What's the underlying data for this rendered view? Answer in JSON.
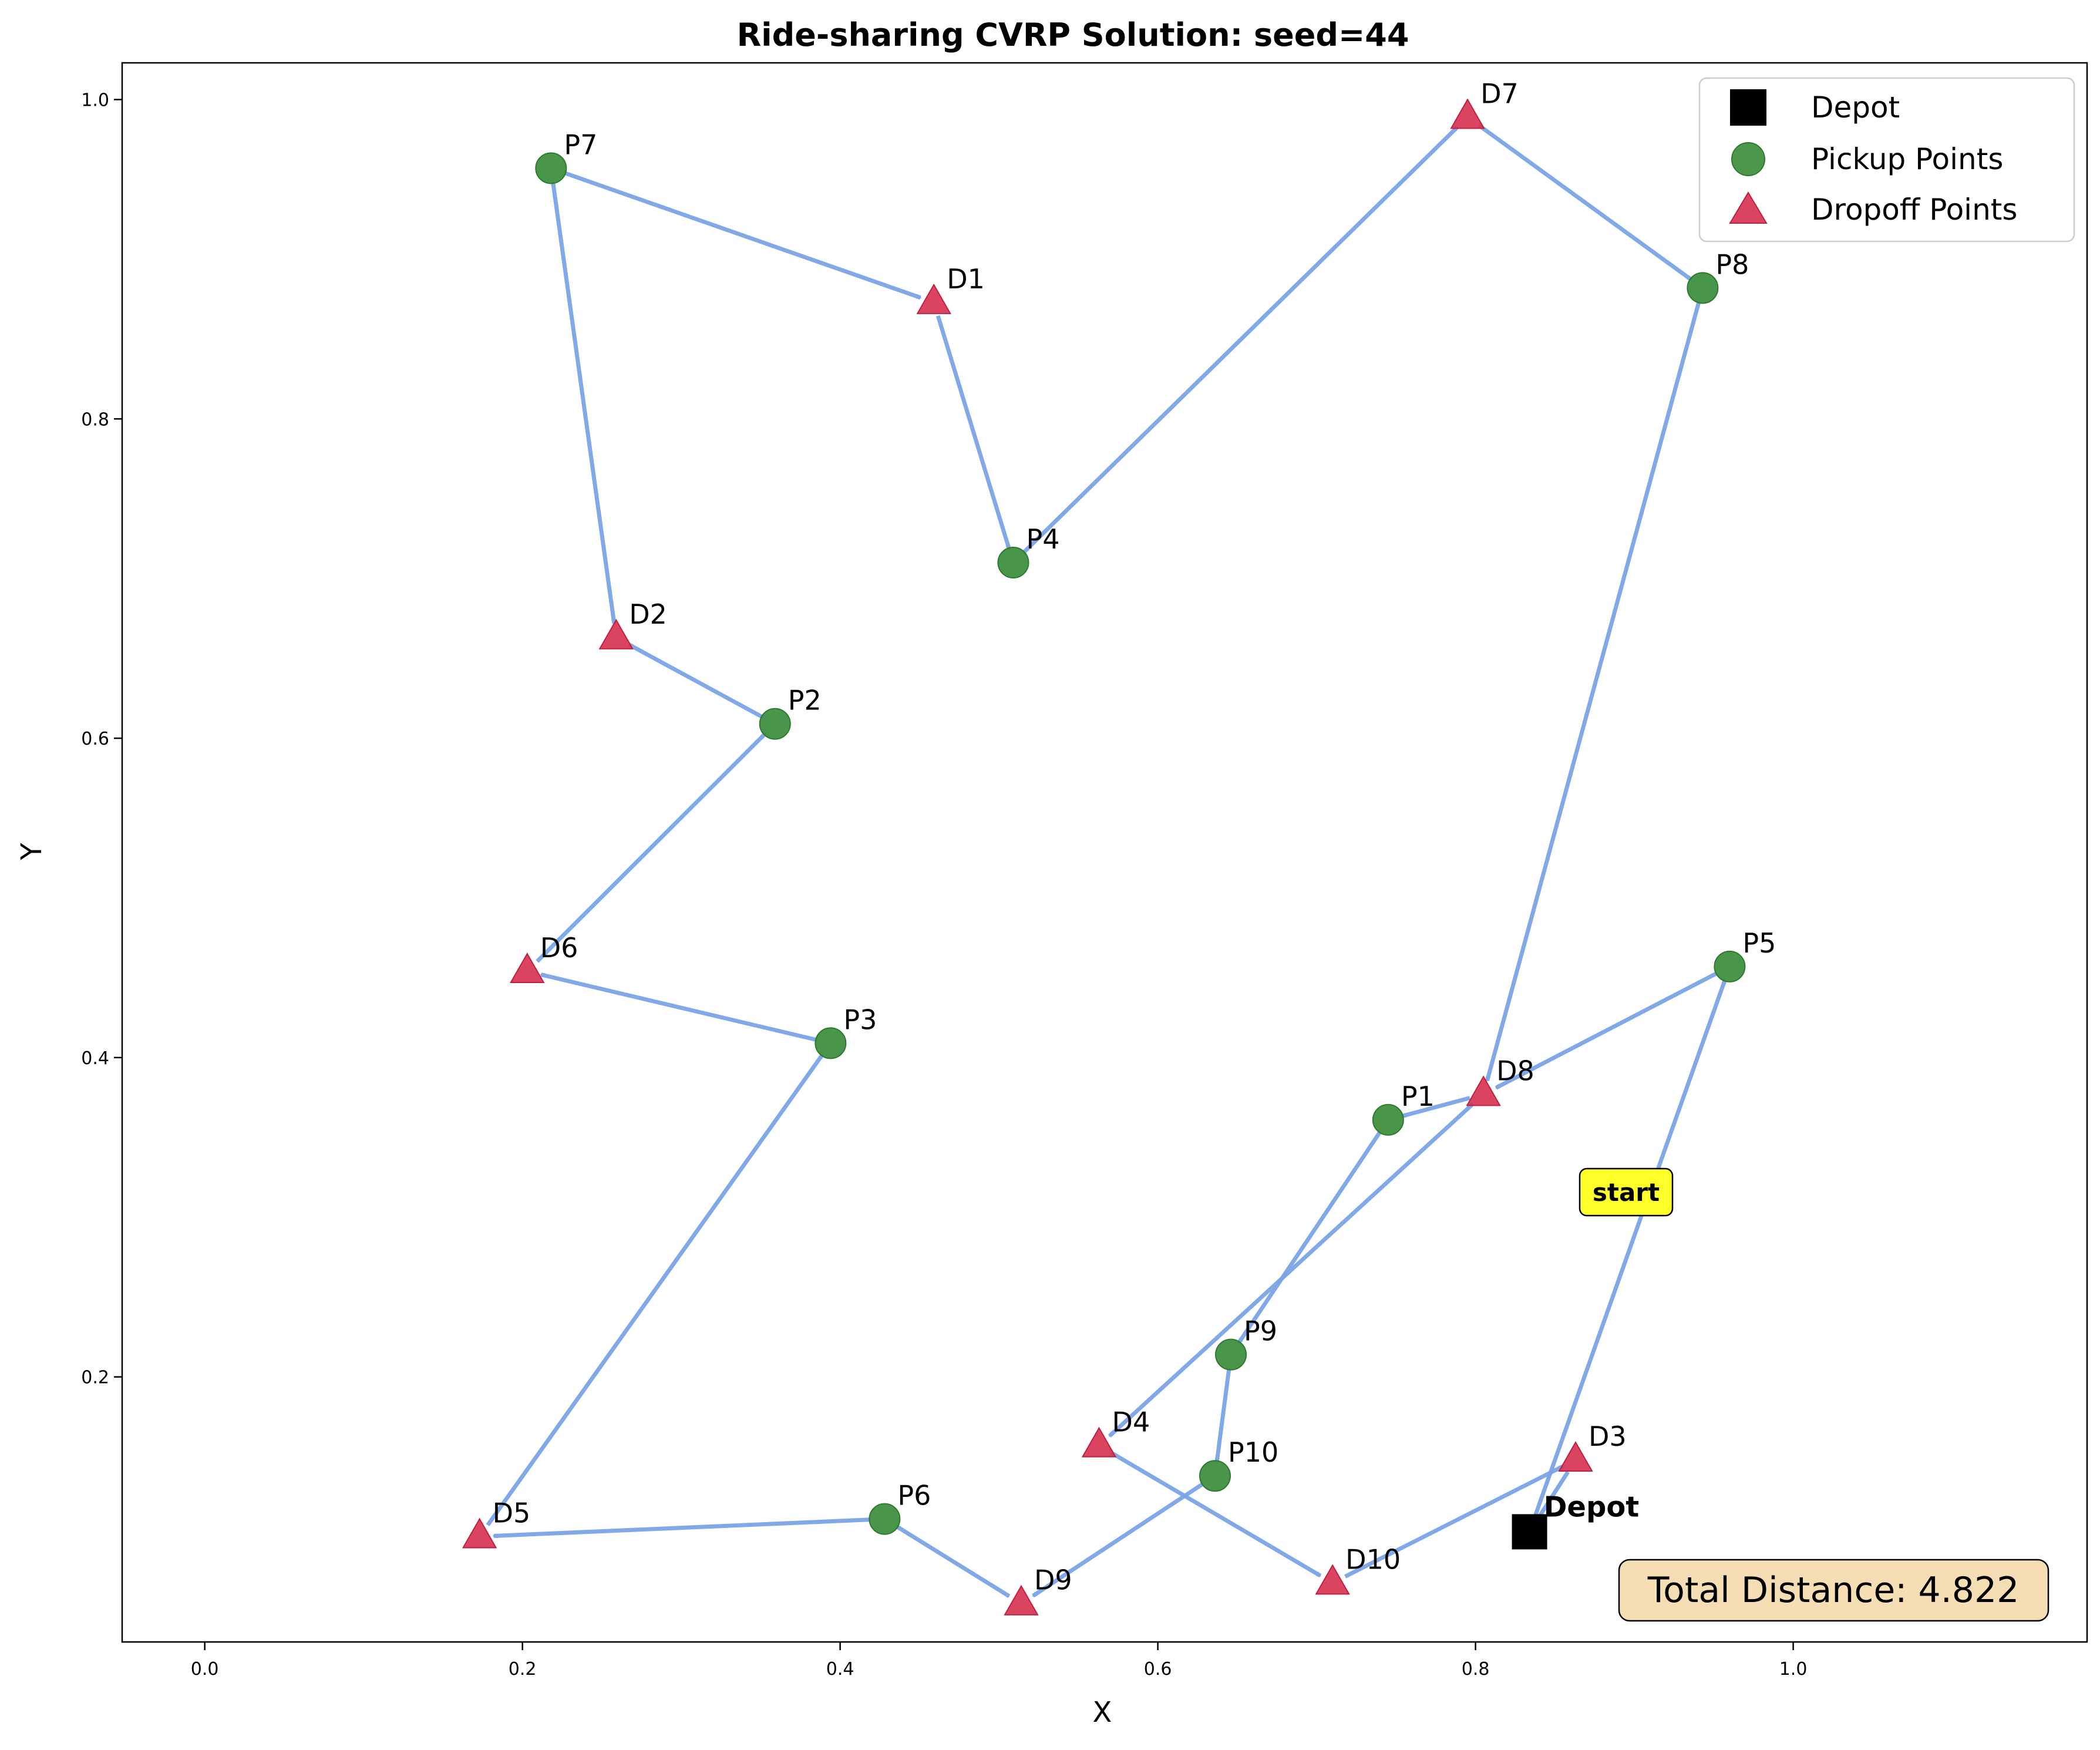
{
  "chart_data": {
    "type": "scatter",
    "title": "Ride-sharing CVRP Solution: seed=44",
    "xlabel": "X",
    "ylabel": "Y",
    "xlim": [
      -0.052,
      1.185
    ],
    "ylim": [
      0.034,
      1.023
    ],
    "xticks": [
      {
        "value": 0.0,
        "label": "0.0"
      },
      {
        "value": 0.2,
        "label": "0.2"
      },
      {
        "value": 0.4,
        "label": "0.4"
      },
      {
        "value": 0.6,
        "label": "0.6"
      },
      {
        "value": 0.8,
        "label": "0.8"
      },
      {
        "value": 1.0,
        "label": "1.0"
      }
    ],
    "yticks": [
      {
        "value": 0.2,
        "label": "0.2"
      },
      {
        "value": 0.4,
        "label": "0.4"
      },
      {
        "value": 0.6,
        "label": "0.6"
      },
      {
        "value": 0.8,
        "label": "0.8"
      },
      {
        "value": 1.0,
        "label": "1.0"
      }
    ],
    "grid": false,
    "legend_placement": "top-right",
    "legend": [
      {
        "label": "Depot",
        "marker": "square",
        "color": "#000000"
      },
      {
        "label": "Pickup Points",
        "marker": "circle",
        "color": "#3a8c3a"
      },
      {
        "label": "Dropoff Points",
        "marker": "triangle",
        "color": "#d6304f"
      }
    ],
    "route_color": "#7ba4e6",
    "depot": {
      "label": "Depot",
      "x": 0.834,
      "y": 0.103
    },
    "pickups": [
      {
        "label": "P1",
        "x": 0.745,
        "y": 0.361
      },
      {
        "label": "P2",
        "x": 0.359,
        "y": 0.609
      },
      {
        "label": "P3",
        "x": 0.394,
        "y": 0.409
      },
      {
        "label": "P4",
        "x": 0.509,
        "y": 0.71
      },
      {
        "label": "P5",
        "x": 0.96,
        "y": 0.457
      },
      {
        "label": "P6",
        "x": 0.428,
        "y": 0.111
      },
      {
        "label": "P7",
        "x": 0.218,
        "y": 0.957
      },
      {
        "label": "P8",
        "x": 0.943,
        "y": 0.882
      },
      {
        "label": "P9",
        "x": 0.646,
        "y": 0.214
      },
      {
        "label": "P10",
        "x": 0.636,
        "y": 0.138
      }
    ],
    "dropoffs": [
      {
        "label": "D1",
        "x": 0.459,
        "y": 0.873
      },
      {
        "label": "D2",
        "x": 0.259,
        "y": 0.663
      },
      {
        "label": "D3",
        "x": 0.863,
        "y": 0.148
      },
      {
        "label": "D4",
        "x": 0.563,
        "y": 0.157
      },
      {
        "label": "D5",
        "x": 0.173,
        "y": 0.1
      },
      {
        "label": "D6",
        "x": 0.203,
        "y": 0.454
      },
      {
        "label": "D7",
        "x": 0.795,
        "y": 0.989
      },
      {
        "label": "D8",
        "x": 0.805,
        "y": 0.377
      },
      {
        "label": "D9",
        "x": 0.514,
        "y": 0.058
      },
      {
        "label": "D10",
        "x": 0.71,
        "y": 0.071
      }
    ],
    "route": [
      "Depot",
      "P5",
      "D8",
      "P1",
      "P9",
      "P10",
      "D9",
      "P6",
      "D5",
      "P3",
      "D6",
      "P2",
      "D2",
      "P7",
      "D1",
      "P4",
      "D7",
      "P8",
      "D8",
      "D4",
      "D10",
      "D3",
      "Depot"
    ],
    "annotations": {
      "start": "start",
      "total_distance": "Total Distance: 4.822"
    }
  }
}
